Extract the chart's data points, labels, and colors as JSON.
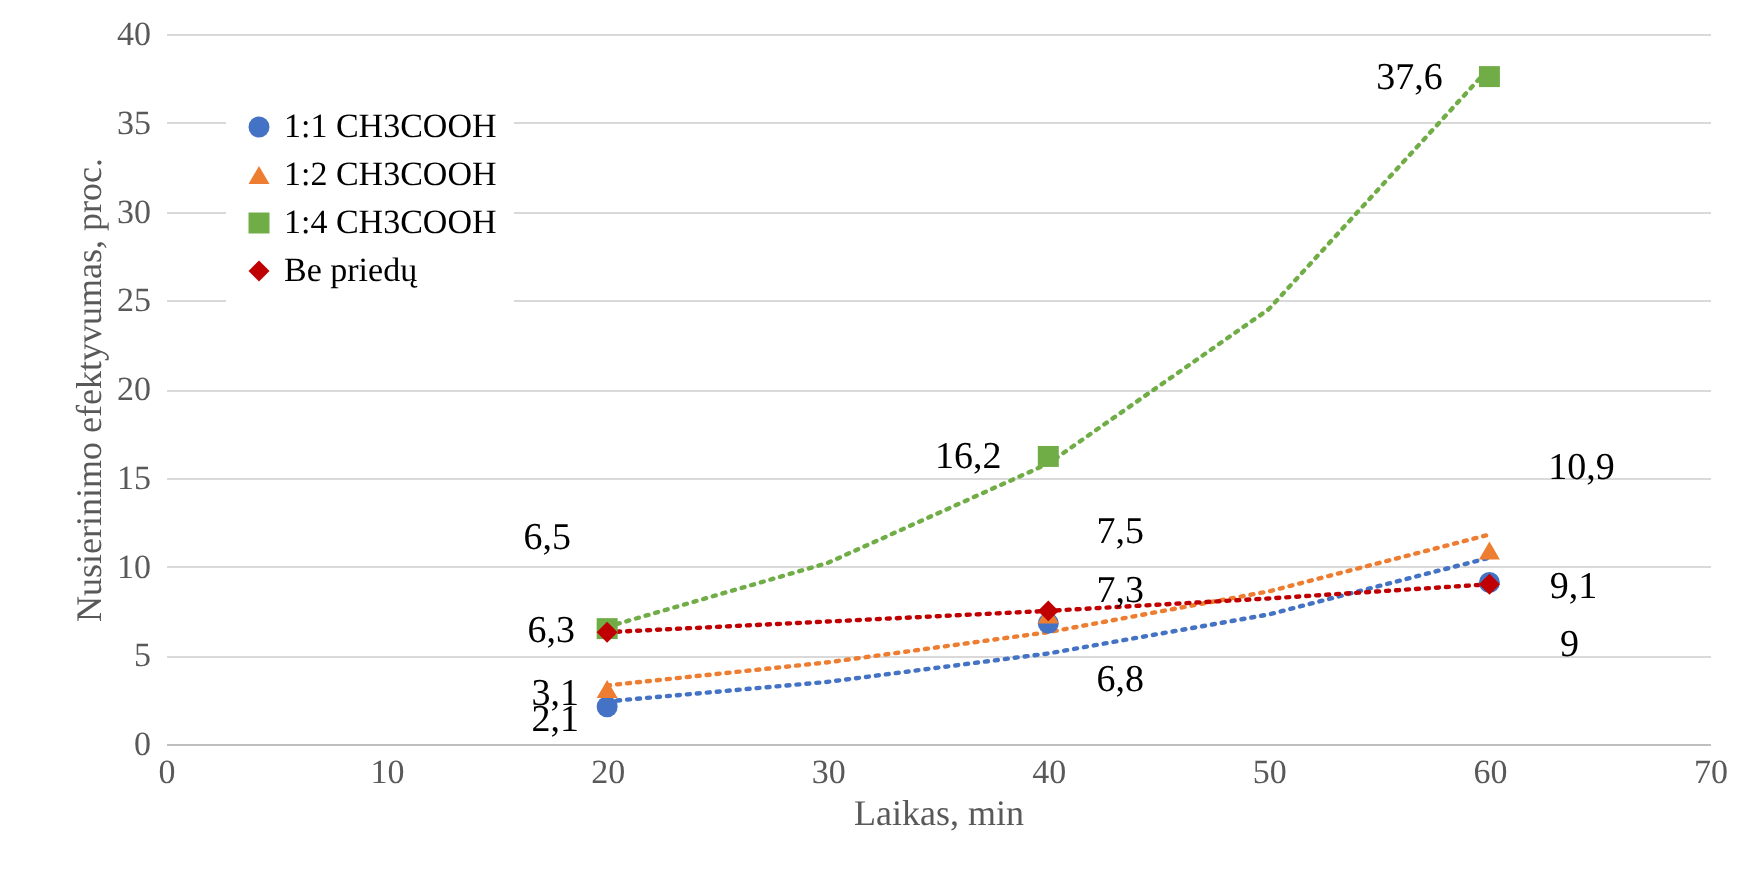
{
  "chart_data": {
    "type": "scatter",
    "xlabel": "Laikas, min",
    "ylabel": "Nusierinimo efektyvumas, proc.",
    "xlim": [
      0,
      70
    ],
    "xticks": [
      0,
      10,
      20,
      30,
      40,
      50,
      60,
      70
    ],
    "ylim": [
      0,
      40
    ],
    "yticks": [
      0,
      5,
      10,
      15,
      20,
      25,
      30,
      35,
      40
    ],
    "grid": "y",
    "legend": "top left",
    "series": [
      {
        "name": "1:1 CH3COOH",
        "color": "#4472c4",
        "marker": "circle",
        "x": [
          20,
          40,
          60
        ],
        "values": [
          2.1,
          6.8,
          9.1
        ],
        "value_labels": [
          "2,1",
          "6,8",
          "9,1"
        ]
      },
      {
        "name": "1:2 CH3COOH",
        "color": "#ed7d31",
        "marker": "triangle",
        "x": [
          20,
          40,
          60
        ],
        "values": [
          3.1,
          7.3,
          10.9
        ],
        "value_labels": [
          "3,1",
          "7,3",
          "10,9"
        ]
      },
      {
        "name": "1:4 CH3COOH",
        "color": "#70ad47",
        "marker": "square",
        "x": [
          20,
          40,
          60
        ],
        "values": [
          6.5,
          16.2,
          37.6
        ],
        "value_labels": [
          "6,5",
          "16,2",
          "37,6"
        ]
      },
      {
        "name": "Be priedų",
        "color": "#c00000",
        "marker": "diamond",
        "x": [
          20,
          40,
          60
        ],
        "values": [
          6.3,
          7.5,
          9
        ],
        "value_labels": [
          "6,3",
          "7,5",
          "9"
        ]
      },
      {
        "type": "line",
        "color": "#4472c4",
        "line_style": "dotted",
        "x": [
          20,
          30,
          40,
          50,
          60
        ],
        "values": [
          2.4,
          3.5,
          5.1,
          7.3,
          10.5
        ]
      },
      {
        "type": "line",
        "color": "#ed7d31",
        "line_style": "dotted",
        "x": [
          20,
          30,
          40,
          50,
          60
        ],
        "values": [
          3.3,
          4.6,
          6.3,
          8.6,
          11.8
        ]
      },
      {
        "type": "line",
        "color": "#70ad47",
        "line_style": "dotted",
        "x": [
          20,
          30,
          40,
          50,
          60
        ],
        "values": [
          6.6,
          10.2,
          15.8,
          24.5,
          38.1
        ]
      },
      {
        "type": "line",
        "color": "#c00000",
        "line_style": "dotted",
        "x": [
          20,
          30,
          40,
          50,
          60
        ],
        "values": [
          6.3,
          6.9,
          7.5,
          8.2,
          9
        ]
      }
    ]
  }
}
